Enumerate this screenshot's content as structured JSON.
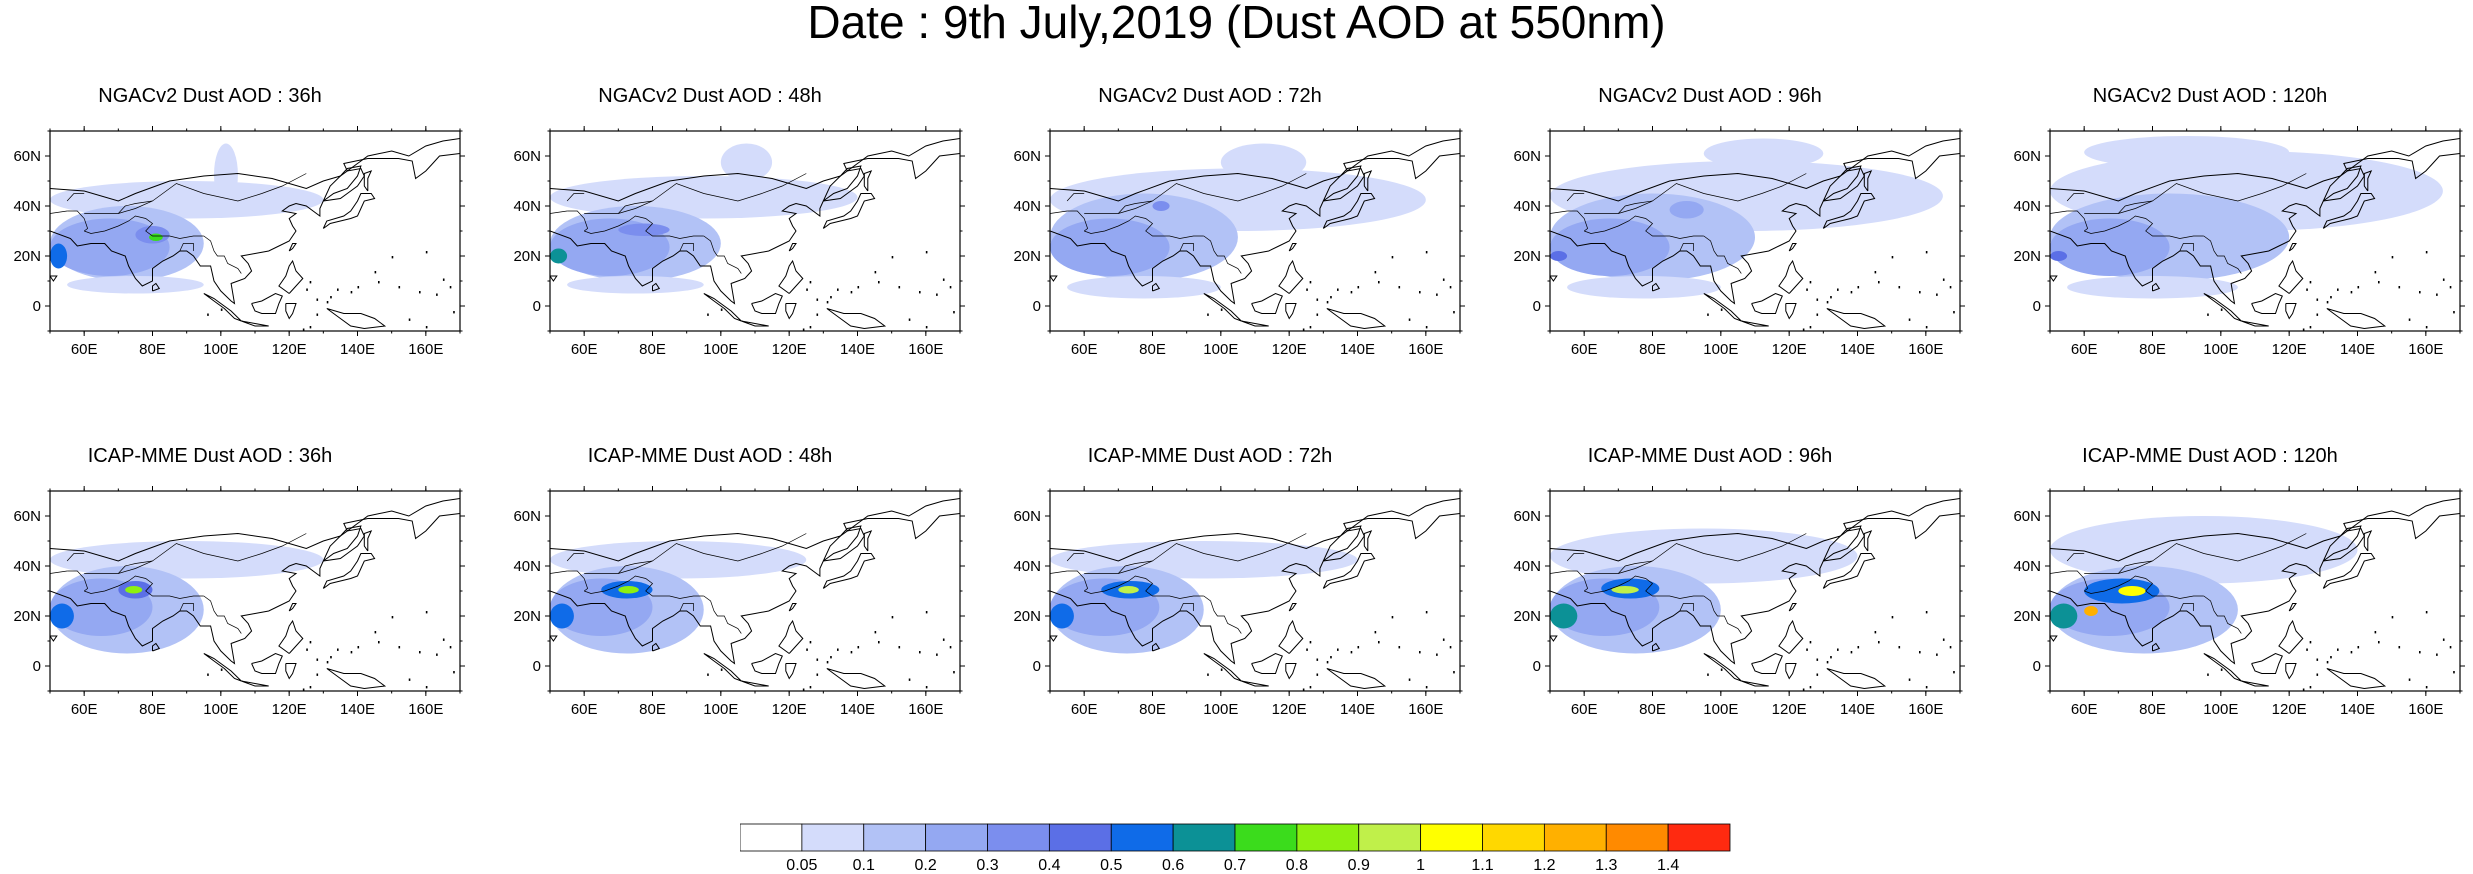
{
  "title": "Date : 9th July,2019 (Dust AOD at 550nm)",
  "lat_labels": [
    "60N",
    "40N",
    "20N",
    "0"
  ],
  "lat_values": [
    60,
    40,
    20,
    0
  ],
  "lon_labels": [
    "60E",
    "80E",
    "100E",
    "120E",
    "140E",
    "160E"
  ],
  "lon_values": [
    60,
    80,
    100,
    120,
    140,
    160
  ],
  "map_extent": {
    "lon": [
      50,
      170
    ],
    "lat": [
      -10,
      70
    ]
  },
  "panels": [
    {
      "title": "NGACv2 Dust AOD : 36h",
      "model": "NGACv2",
      "lead": "36h",
      "blobs": [
        {
          "lon": [
            50,
            130
          ],
          "lat": [
            35,
            50
          ],
          "c": 1
        },
        {
          "lon": [
            98,
            105
          ],
          "lat": [
            40,
            65
          ],
          "c": 1
        },
        {
          "lon": [
            50,
            95
          ],
          "lat": [
            10,
            40
          ],
          "c": 2
        },
        {
          "lon": [
            50,
            85
          ],
          "lat": [
            12,
            35
          ],
          "c": 3
        },
        {
          "lon": [
            75,
            85
          ],
          "lat": [
            25,
            32
          ],
          "c": 4
        },
        {
          "lon": [
            50,
            55
          ],
          "lat": [
            15,
            25
          ],
          "c": 6
        },
        {
          "lon": [
            79,
            83
          ],
          "lat": [
            26,
            29
          ],
          "c": 8
        },
        {
          "lon": [
            55,
            95
          ],
          "lat": [
            5,
            12
          ],
          "c": 1
        }
      ]
    },
    {
      "title": "NGACv2 Dust AOD : 48h",
      "model": "NGACv2",
      "lead": "48h",
      "blobs": [
        {
          "lon": [
            50,
            140
          ],
          "lat": [
            35,
            52
          ],
          "c": 1
        },
        {
          "lon": [
            100,
            115
          ],
          "lat": [
            50,
            65
          ],
          "c": 1
        },
        {
          "lon": [
            50,
            100
          ],
          "lat": [
            10,
            40
          ],
          "c": 2
        },
        {
          "lon": [
            50,
            85
          ],
          "lat": [
            12,
            35
          ],
          "c": 3
        },
        {
          "lon": [
            70,
            85
          ],
          "lat": [
            28,
            33
          ],
          "c": 4
        },
        {
          "lon": [
            50,
            55
          ],
          "lat": [
            17,
            23
          ],
          "c": 7
        },
        {
          "lon": [
            55,
            95
          ],
          "lat": [
            5,
            12
          ],
          "c": 1
        }
      ]
    },
    {
      "title": "NGACv2 Dust AOD : 72h",
      "model": "NGACv2",
      "lead": "72h",
      "blobs": [
        {
          "lon": [
            50,
            160
          ],
          "lat": [
            30,
            55
          ],
          "c": 1
        },
        {
          "lon": [
            100,
            125
          ],
          "lat": [
            50,
            65
          ],
          "c": 1
        },
        {
          "lon": [
            50,
            105
          ],
          "lat": [
            10,
            45
          ],
          "c": 2
        },
        {
          "lon": [
            50,
            85
          ],
          "lat": [
            12,
            35
          ],
          "c": 3
        },
        {
          "lon": [
            80,
            85
          ],
          "lat": [
            38,
            42
          ],
          "c": 4
        },
        {
          "lon": [
            55,
            100
          ],
          "lat": [
            3,
            12
          ],
          "c": 1
        }
      ]
    },
    {
      "title": "NGACv2 Dust AOD : 96h",
      "model": "NGACv2",
      "lead": "96h",
      "blobs": [
        {
          "lon": [
            50,
            165
          ],
          "lat": [
            30,
            58
          ],
          "c": 1
        },
        {
          "lon": [
            95,
            130
          ],
          "lat": [
            55,
            67
          ],
          "c": 1
        },
        {
          "lon": [
            50,
            110
          ],
          "lat": [
            10,
            45
          ],
          "c": 2
        },
        {
          "lon": [
            50,
            85
          ],
          "lat": [
            12,
            35
          ],
          "c": 3
        },
        {
          "lon": [
            85,
            95
          ],
          "lat": [
            35,
            42
          ],
          "c": 3
        },
        {
          "lon": [
            50,
            55
          ],
          "lat": [
            18,
            22
          ],
          "c": 5
        },
        {
          "lon": [
            55,
            100
          ],
          "lat": [
            3,
            12
          ],
          "c": 1
        }
      ]
    },
    {
      "title": "NGACv2 Dust AOD : 120h",
      "model": "NGACv2",
      "lead": "120h",
      "blobs": [
        {
          "lon": [
            50,
            165
          ],
          "lat": [
            30,
            62
          ],
          "c": 1
        },
        {
          "lon": [
            60,
            120
          ],
          "lat": [
            55,
            68
          ],
          "c": 1
        },
        {
          "lon": [
            50,
            120
          ],
          "lat": [
            10,
            45
          ],
          "c": 2
        },
        {
          "lon": [
            50,
            85
          ],
          "lat": [
            12,
            35
          ],
          "c": 3
        },
        {
          "lon": [
            50,
            55
          ],
          "lat": [
            18,
            22
          ],
          "c": 5
        },
        {
          "lon": [
            55,
            105
          ],
          "lat": [
            3,
            12
          ],
          "c": 1
        }
      ]
    },
    {
      "title": "ICAP-MME Dust AOD : 36h",
      "model": "ICAP-MME",
      "lead": "36h",
      "blobs": [
        {
          "lon": [
            50,
            130
          ],
          "lat": [
            35,
            50
          ],
          "c": 1
        },
        {
          "lon": [
            50,
            95
          ],
          "lat": [
            5,
            40
          ],
          "c": 2
        },
        {
          "lon": [
            50,
            80
          ],
          "lat": [
            12,
            35
          ],
          "c": 3
        },
        {
          "lon": [
            70,
            80
          ],
          "lat": [
            27,
            34
          ],
          "c": 5
        },
        {
          "lon": [
            50,
            57
          ],
          "lat": [
            15,
            25
          ],
          "c": 6
        },
        {
          "lon": [
            72,
            77
          ],
          "lat": [
            29,
            32
          ],
          "c": 9
        }
      ]
    },
    {
      "title": "ICAP-MME Dust AOD : 48h",
      "model": "ICAP-MME",
      "lead": "48h",
      "blobs": [
        {
          "lon": [
            50,
            125
          ],
          "lat": [
            35,
            50
          ],
          "c": 1
        },
        {
          "lon": [
            50,
            95
          ],
          "lat": [
            5,
            40
          ],
          "c": 2
        },
        {
          "lon": [
            50,
            80
          ],
          "lat": [
            12,
            35
          ],
          "c": 3
        },
        {
          "lon": [
            65,
            80
          ],
          "lat": [
            27,
            34
          ],
          "c": 6
        },
        {
          "lon": [
            50,
            57
          ],
          "lat": [
            15,
            25
          ],
          "c": 6
        },
        {
          "lon": [
            70,
            76
          ],
          "lat": [
            29,
            32
          ],
          "c": 9
        }
      ]
    },
    {
      "title": "ICAP-MME Dust AOD : 72h",
      "model": "ICAP-MME",
      "lead": "72h",
      "blobs": [
        {
          "lon": [
            50,
            140
          ],
          "lat": [
            35,
            50
          ],
          "c": 1
        },
        {
          "lon": [
            50,
            95
          ],
          "lat": [
            5,
            40
          ],
          "c": 2
        },
        {
          "lon": [
            50,
            82
          ],
          "lat": [
            12,
            35
          ],
          "c": 3
        },
        {
          "lon": [
            65,
            82
          ],
          "lat": [
            27,
            34
          ],
          "c": 6
        },
        {
          "lon": [
            50,
            57
          ],
          "lat": [
            15,
            25
          ],
          "c": 6
        },
        {
          "lon": [
            70,
            76
          ],
          "lat": [
            29,
            32
          ],
          "c": 10
        }
      ]
    },
    {
      "title": "ICAP-MME Dust AOD : 96h",
      "model": "ICAP-MME",
      "lead": "96h",
      "blobs": [
        {
          "lon": [
            50,
            140
          ],
          "lat": [
            33,
            55
          ],
          "c": 1
        },
        {
          "lon": [
            50,
            100
          ],
          "lat": [
            5,
            40
          ],
          "c": 2
        },
        {
          "lon": [
            50,
            82
          ],
          "lat": [
            12,
            35
          ],
          "c": 3
        },
        {
          "lon": [
            65,
            82
          ],
          "lat": [
            27,
            35
          ],
          "c": 6
        },
        {
          "lon": [
            50,
            58
          ],
          "lat": [
            15,
            25
          ],
          "c": 7
        },
        {
          "lon": [
            68,
            76
          ],
          "lat": [
            29,
            32
          ],
          "c": 10
        }
      ]
    },
    {
      "title": "ICAP-MME Dust AOD : 120h",
      "model": "ICAP-MME",
      "lead": "120h",
      "blobs": [
        {
          "lon": [
            50,
            140
          ],
          "lat": [
            33,
            60
          ],
          "c": 1
        },
        {
          "lon": [
            50,
            105
          ],
          "lat": [
            5,
            40
          ],
          "c": 2
        },
        {
          "lon": [
            50,
            85
          ],
          "lat": [
            12,
            35
          ],
          "c": 3
        },
        {
          "lon": [
            60,
            82
          ],
          "lat": [
            25,
            35
          ],
          "c": 6
        },
        {
          "lon": [
            50,
            58
          ],
          "lat": [
            15,
            25
          ],
          "c": 7
        },
        {
          "lon": [
            70,
            78
          ],
          "lat": [
            28,
            32
          ],
          "c": 11
        },
        {
          "lon": [
            60,
            64
          ],
          "lat": [
            20,
            24
          ],
          "c": 13
        }
      ]
    }
  ],
  "colorbar": {
    "labels": [
      "0.05",
      "0.1",
      "0.2",
      "0.3",
      "0.4",
      "0.5",
      "0.6",
      "0.7",
      "0.8",
      "0.9",
      "1",
      "1.1",
      "1.2",
      "1.3",
      "1.4"
    ],
    "colors": [
      "#ffffff",
      "#d4dcfb",
      "#b2c2f6",
      "#94a8f2",
      "#7b8eee",
      "#5b6fe6",
      "#0f6be8",
      "#0c9196",
      "#3bdc1c",
      "#8ef010",
      "#c0f04a",
      "#ffff00",
      "#ffd800",
      "#ffb000",
      "#ff8a00",
      "#ff2a10"
    ]
  },
  "coast_color": "#000000"
}
